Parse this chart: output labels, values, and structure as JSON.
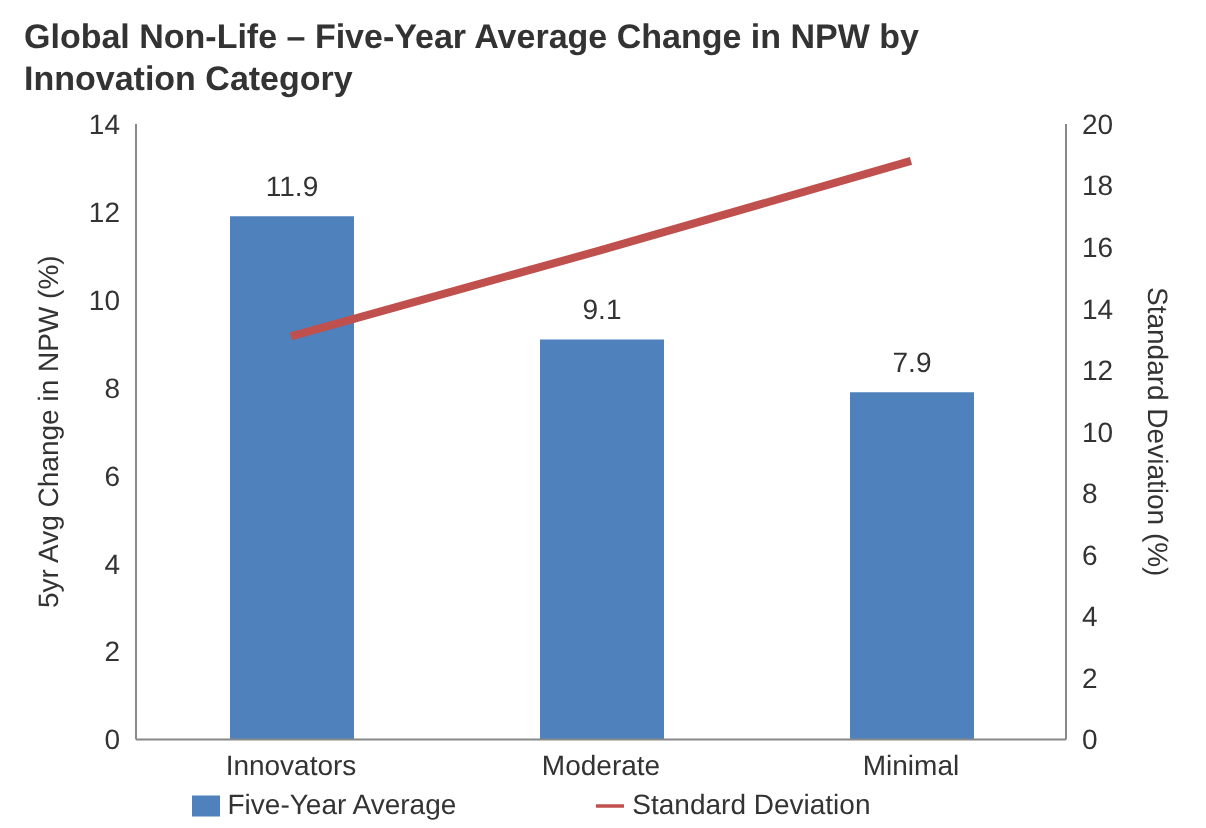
{
  "chart_data": {
    "type": "bar",
    "title": "Global Non-Life – Five-Year Average Change in NPW by Innovation Category",
    "ylabel": "5yr Avg Change in NPW (%)",
    "y2label": "Standard Deviation (%)",
    "categories": [
      "Innovators",
      "Moderate",
      "Minimal"
    ],
    "series": [
      {
        "name": "Five-Year Average",
        "color": "#4f81bd",
        "values": [
          11.9,
          9.1,
          7.9
        ],
        "value_labels": [
          "11.9",
          "9.1",
          "7.9"
        ]
      },
      {
        "name": "Standard Deviation",
        "type": "line",
        "axis": "y2",
        "color": "#c0504d",
        "values": [
          13.1,
          15.9,
          18.8
        ]
      }
    ],
    "ylim": [
      0,
      14
    ],
    "yticks": [
      0,
      2,
      4,
      6,
      8,
      10,
      12,
      14
    ],
    "y2lim": [
      0,
      20
    ],
    "y2ticks": [
      0,
      2,
      4,
      6,
      8,
      10,
      12,
      14,
      16,
      18,
      20
    ],
    "grid": false,
    "legend": "bottom",
    "marker": "none"
  }
}
